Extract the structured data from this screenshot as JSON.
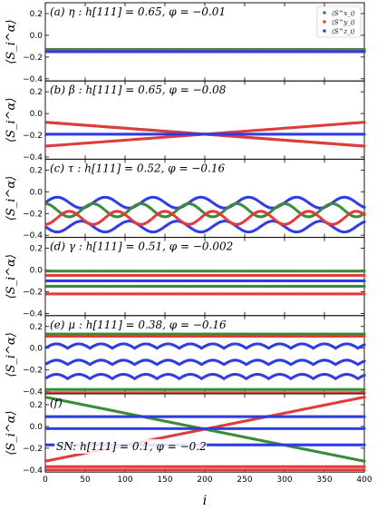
{
  "figure": {
    "xlabel": "i",
    "ylabel": "⟨S_i^α⟩",
    "xticks": [
      0,
      50,
      100,
      150,
      200,
      250,
      300,
      350,
      400
    ],
    "colors": {
      "x": "#3a8a3a",
      "y": "#e03c3c",
      "z": "#2f3de0"
    },
    "legend": {
      "placement": "top-right",
      "panel": 0,
      "entries": [
        "⟨S^x_i⟩",
        "⟨S^y_i⟩",
        "⟨S^z_i⟩"
      ]
    }
  },
  "chart_data": [
    {
      "type": "scatter",
      "title": "(a) η : h[111] = 0.65,  φ = −0.01",
      "xlim": [
        0,
        400
      ],
      "ylim": [
        -0.42,
        0.3
      ],
      "yticks": [
        -0.4,
        -0.2,
        0.0,
        0.2
      ],
      "ytick_labels": [
        "−0.4",
        "−0.2",
        "0.0",
        "0.2"
      ],
      "series": [
        {
          "component": "x",
          "pattern": "const",
          "levels": [
            -0.13
          ]
        },
        {
          "component": "y",
          "pattern": "const",
          "levels": [
            -0.14,
            -0.15
          ]
        },
        {
          "component": "z",
          "pattern": "const",
          "levels": [
            -0.15
          ]
        }
      ]
    },
    {
      "type": "scatter",
      "title": "(b) β : h[111] = 0.65,  φ = −0.08",
      "xlim": [
        0,
        400
      ],
      "ylim": [
        -0.42,
        0.3
      ],
      "yticks": [
        -0.4,
        -0.2,
        0.0,
        0.2
      ],
      "ytick_labels": [
        "−0.4",
        "−0.2",
        "0.0",
        "0.2"
      ],
      "series": [
        {
          "component": "x",
          "pattern": "cross",
          "start": -0.08,
          "end": -0.3
        },
        {
          "component": "y",
          "pattern": "cross",
          "start": -0.08,
          "end": -0.3
        },
        {
          "component": "y",
          "pattern": "cross",
          "start": -0.3,
          "end": -0.08
        },
        {
          "component": "z",
          "pattern": "const",
          "levels": [
            -0.19
          ]
        }
      ]
    },
    {
      "type": "scatter",
      "title": "(c) τ : h[111] = 0.52,  φ = −0.16",
      "xlim": [
        0,
        400
      ],
      "ylim": [
        -0.42,
        0.3
      ],
      "yticks": [
        -0.4,
        -0.2,
        0.0,
        0.2
      ],
      "ytick_labels": [
        "−0.4",
        "−0.2",
        "0.0",
        "0.2"
      ],
      "series": [
        {
          "component": "z",
          "pattern": "wave",
          "center": -0.1,
          "amp": 0.05,
          "period": 60,
          "phase": 0
        },
        {
          "component": "z",
          "pattern": "wave",
          "center": -0.32,
          "amp": 0.05,
          "period": 60,
          "phase": 3.14
        },
        {
          "component": "x",
          "pattern": "wave",
          "center": -0.17,
          "amp": 0.06,
          "period": 60,
          "phase": 1.57
        },
        {
          "component": "y",
          "pattern": "wave",
          "center": -0.24,
          "amp": 0.06,
          "period": 60,
          "phase": 4.71
        }
      ]
    },
    {
      "type": "scatter",
      "title": "(d) γ : h[111] = 0.51,  φ = −0.002",
      "xlim": [
        0,
        400
      ],
      "ylim": [
        -0.42,
        0.3
      ],
      "yticks": [
        -0.4,
        -0.2,
        0.0,
        0.2
      ],
      "ytick_labels": [
        "−0.4",
        "−0.2",
        "0.0",
        "0.2"
      ],
      "series": [
        {
          "component": "x",
          "pattern": "const",
          "levels": [
            -0.01,
            -0.15
          ]
        },
        {
          "component": "y",
          "pattern": "const",
          "levels": [
            -0.05,
            -0.22
          ]
        },
        {
          "component": "z",
          "pattern": "const",
          "levels": [
            -0.1
          ]
        }
      ]
    },
    {
      "type": "scatter",
      "title": "(e) μ : h[111] = 0.38,  φ = −0.16",
      "xlim": [
        0,
        400
      ],
      "ylim": [
        -0.42,
        0.3
      ],
      "yticks": [
        -0.4,
        -0.2,
        0.0,
        0.2
      ],
      "ytick_labels": [
        "−0.4",
        "−0.2",
        "0.0",
        "0.2"
      ],
      "series": [
        {
          "component": "x",
          "pattern": "const",
          "levels": [
            0.13,
            -0.38
          ]
        },
        {
          "component": "y",
          "pattern": "const",
          "levels": [
            0.11,
            -0.41
          ]
        },
        {
          "component": "z",
          "pattern": "arcs",
          "levels": [
            0.0,
            -0.15,
            -0.28
          ],
          "period": 28,
          "amp": 0.04
        }
      ]
    },
    {
      "type": "scatter",
      "title": "(f)",
      "annotation": "SN: h[111] = 0.1,  φ = −0.2",
      "xlim": [
        0,
        400
      ],
      "ylim": [
        -0.42,
        0.3
      ],
      "yticks": [
        -0.4,
        -0.2,
        0.0,
        0.2
      ],
      "ytick_labels": [
        "−0.4",
        "−0.2",
        "0.0",
        "0.2"
      ],
      "series": [
        {
          "component": "x",
          "pattern": "cross",
          "start": 0.27,
          "end": -0.32
        },
        {
          "component": "y",
          "pattern": "cross",
          "start": -0.32,
          "end": 0.27
        },
        {
          "component": "z",
          "pattern": "const",
          "levels": [
            0.09,
            -0.02,
            -0.17
          ]
        },
        {
          "component": "y",
          "pattern": "const",
          "levels": [
            -0.37,
            -0.4
          ]
        }
      ]
    }
  ]
}
